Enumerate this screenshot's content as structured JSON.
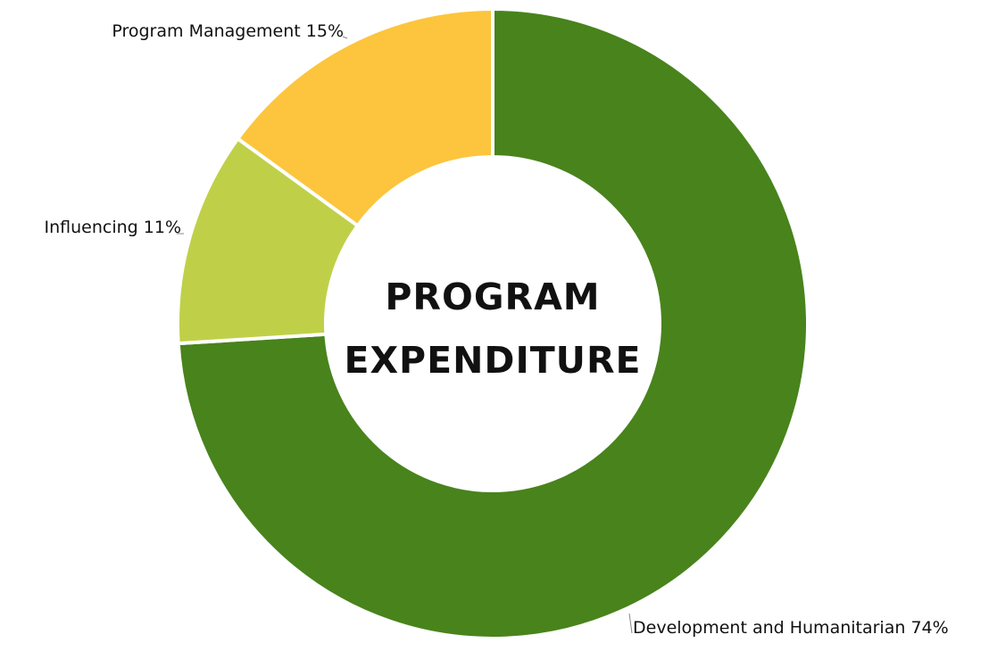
{
  "chart_data": {
    "type": "pie",
    "donut": true,
    "title_lines": [
      "PROGRAM",
      "EXPENDITURE"
    ],
    "slices": [
      {
        "label": "Development and Humanitarian 74%",
        "value": 74,
        "color": "#48831c"
      },
      {
        "label": "Influencing 11%",
        "value": 11,
        "color": "#bfd048"
      },
      {
        "label": "Program Management 15%",
        "value": 15,
        "color": "#fcc53d"
      }
    ]
  }
}
